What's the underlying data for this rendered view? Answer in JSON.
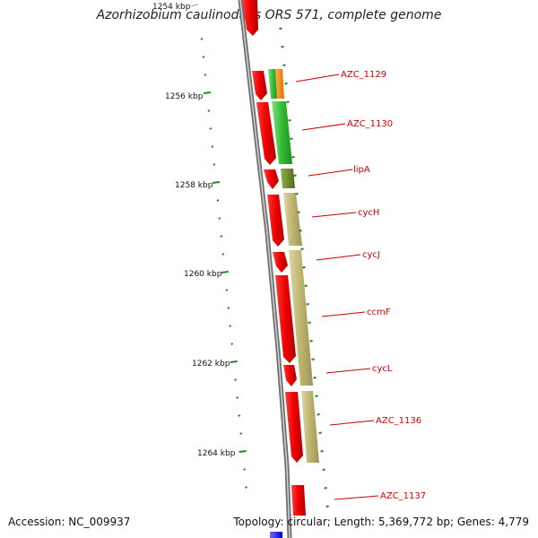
{
  "title": "Azorhizobium caulinodans ORS 571, complete genome",
  "footer": {
    "accession": "Accession: NC_009937",
    "stats": "Topology: circular; Length: 5,369,772 bp; Genes: 4,779"
  },
  "kbp_labels": [
    "1254 kbp",
    "1256 kbp",
    "1258 kbp",
    "1260 kbp",
    "1262 kbp",
    "1264 kbp"
  ],
  "gene_labels": [
    "AZC_1129",
    "AZC_1130",
    "lipA",
    "cycH",
    "cycJ",
    "ccmF",
    "cycL",
    "AZC_1136",
    "AZC_1137"
  ],
  "colors": {
    "backbone": "#8c8c8c",
    "gene": "#ee0000",
    "cds_light_green": "#44cc44",
    "cds_orange": "#ff8800",
    "cds_olive": "#6b8e23",
    "cds_khaki": "#c8bf7a",
    "tick": "#228b22",
    "label": "#cc0000",
    "blue_feature": "#0000ee"
  }
}
